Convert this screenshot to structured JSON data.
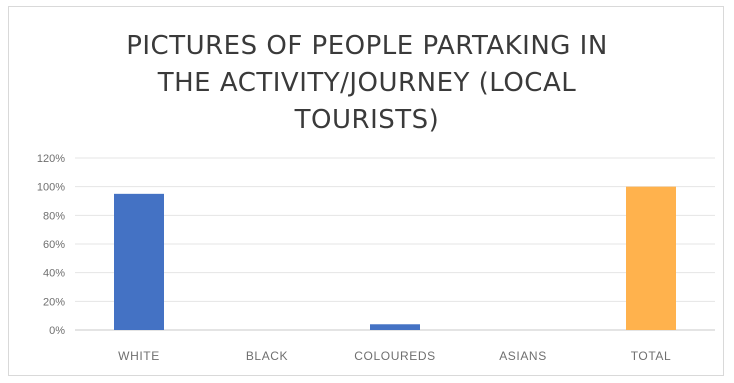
{
  "chart_data": {
    "type": "bar",
    "title_lines": [
      "PICTURES OF PEOPLE PARTAKING IN",
      "THE ACTIVITY/JOURNEY (LOCAL",
      "TOURISTS)"
    ],
    "categories": [
      "WHITE",
      "BLACK",
      "COLOUREDS",
      "ASIANS",
      "TOTAL"
    ],
    "values": [
      95,
      0,
      4,
      0,
      100
    ],
    "colors": [
      "#4472c4",
      "#4472c4",
      "#4472c4",
      "#4472c4",
      "#ffb24d"
    ],
    "ylim": [
      0,
      120
    ],
    "yticks": [
      0,
      20,
      40,
      60,
      80,
      100,
      120
    ],
    "ytick_labels": [
      "0%",
      "20%",
      "40%",
      "60%",
      "80%",
      "100%",
      "120%"
    ],
    "grid": true,
    "legend": "none"
  }
}
